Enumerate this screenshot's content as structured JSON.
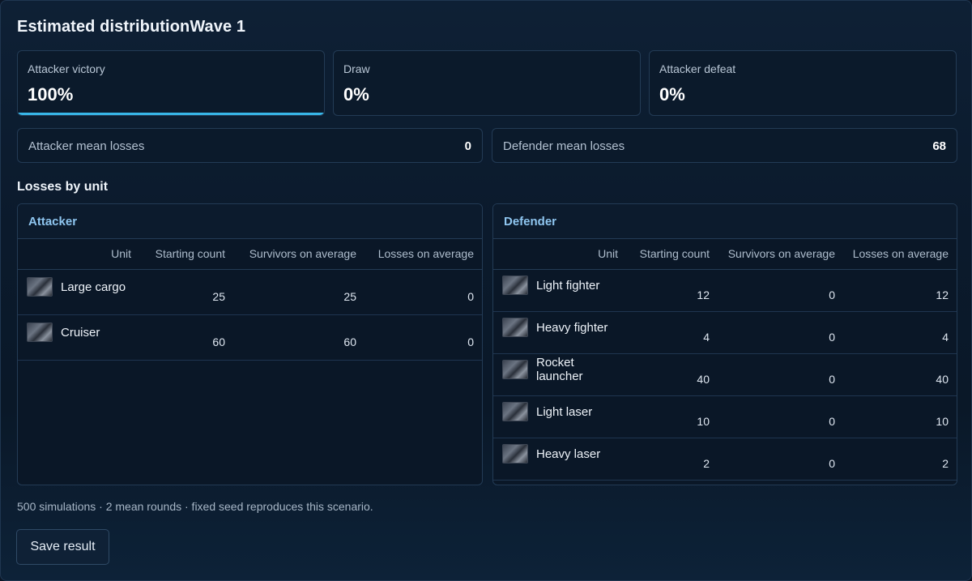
{
  "title": "Estimated distributionWave 1",
  "outcomes": [
    {
      "label": "Attacker victory",
      "value": "100%",
      "fraction": 1.0
    },
    {
      "label": "Draw",
      "value": "0%",
      "fraction": 0.0
    },
    {
      "label": "Attacker defeat",
      "value": "0%",
      "fraction": 0.0
    }
  ],
  "means": {
    "attacker": {
      "label": "Attacker mean losses",
      "value": "0"
    },
    "defender": {
      "label": "Defender mean losses",
      "value": "68"
    }
  },
  "section_title": "Losses by unit",
  "columns": [
    "Unit",
    "Starting count",
    "Survivors on average",
    "Losses on average"
  ],
  "attacker": {
    "title": "Attacker",
    "rows": [
      {
        "unit": "Large cargo",
        "start": "25",
        "survivors": "25",
        "losses": "0"
      },
      {
        "unit": "Cruiser",
        "start": "60",
        "survivors": "60",
        "losses": "0"
      }
    ]
  },
  "defender": {
    "title": "Defender",
    "rows": [
      {
        "unit": "Light fighter",
        "start": "12",
        "survivors": "0",
        "losses": "12"
      },
      {
        "unit": "Heavy fighter",
        "start": "4",
        "survivors": "0",
        "losses": "4"
      },
      {
        "unit": "Rocket launcher",
        "start": "40",
        "survivors": "0",
        "losses": "40"
      },
      {
        "unit": "Light laser",
        "start": "10",
        "survivors": "0",
        "losses": "10"
      },
      {
        "unit": "Heavy laser",
        "start": "2",
        "survivors": "0",
        "losses": "2"
      }
    ]
  },
  "footer": "500 simulations · 2 mean rounds · fixed seed reproduces this scenario.",
  "save_label": "Save result",
  "colors": {
    "accent": "#38b6e8",
    "panel": "#0b1a2b",
    "border": "#233b55"
  }
}
